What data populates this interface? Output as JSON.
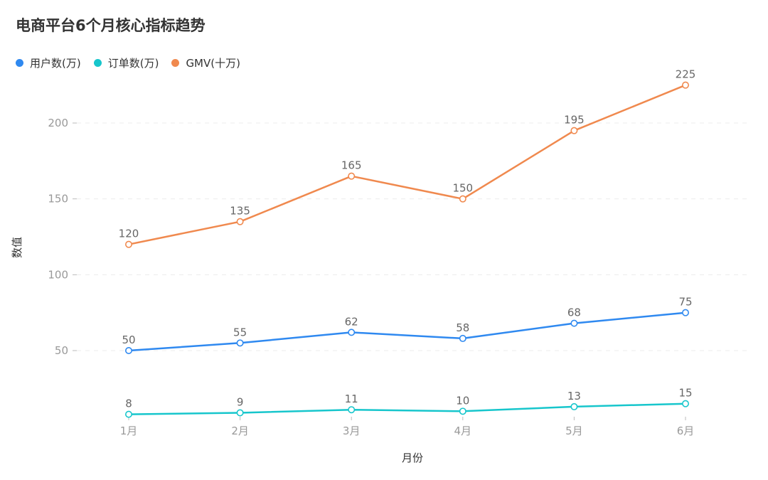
{
  "chart_data": {
    "type": "line",
    "title": "电商平台6个月核心指标趋势",
    "categories": [
      "1月",
      "2月",
      "3月",
      "4月",
      "5月",
      "6月"
    ],
    "xlabel": "月份",
    "ylabel": "数值",
    "ylim": [
      8,
      225
    ],
    "yticks": [
      50,
      100,
      150,
      200
    ],
    "grid": true,
    "legend_position": "top-left",
    "series": [
      {
        "name": "用户数(万)",
        "color": "#2f89f0",
        "values": [
          50,
          55,
          62,
          58,
          68,
          75
        ]
      },
      {
        "name": "订单数(万)",
        "color": "#17c6cc",
        "values": [
          8,
          9,
          11,
          10,
          13,
          15
        ]
      },
      {
        "name": "GMV(十万)",
        "color": "#f0894e",
        "values": [
          120,
          135,
          165,
          150,
          195,
          225
        ]
      }
    ]
  }
}
